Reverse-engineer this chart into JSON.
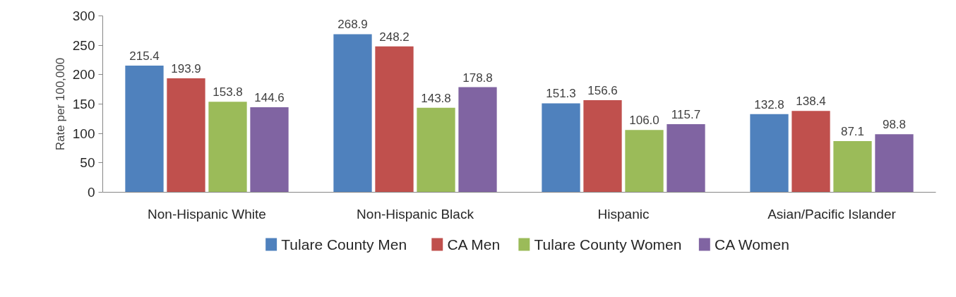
{
  "chart_data": {
    "type": "bar",
    "ylabel": "Rate per 100,000",
    "categories": [
      "Non-Hispanic White",
      "Non-Hispanic Black",
      "Hispanic",
      "Asian/Pacific Islander"
    ],
    "series": [
      {
        "name": "Tulare County Men",
        "color": "#4f81bd",
        "values": [
          215.4,
          268.9,
          151.3,
          132.8
        ],
        "value_labels": [
          "215.4",
          "268.9",
          "151.3",
          "132.8"
        ]
      },
      {
        "name": "CA Men",
        "color": "#c0504d",
        "values": [
          193.9,
          248.2,
          156.6,
          138.4
        ],
        "value_labels": [
          "193.9",
          "248.2",
          "156.6",
          "138.4"
        ]
      },
      {
        "name": "Tulare County Women",
        "color": "#9bbb59",
        "values": [
          153.8,
          143.8,
          106.0,
          87.1
        ],
        "value_labels": [
          "153.8",
          "143.8",
          "106.0",
          "87.1"
        ]
      },
      {
        "name": "CA Women",
        "color": "#8064a2",
        "values": [
          144.6,
          178.8,
          115.7,
          98.8
        ],
        "value_labels": [
          "144.6",
          "178.8",
          "115.7",
          "98.8"
        ]
      }
    ],
    "ylim": [
      0,
      300
    ],
    "yticks": [
      0,
      50,
      100,
      150,
      200,
      250,
      300
    ],
    "grid": false,
    "legend": "bottom"
  }
}
